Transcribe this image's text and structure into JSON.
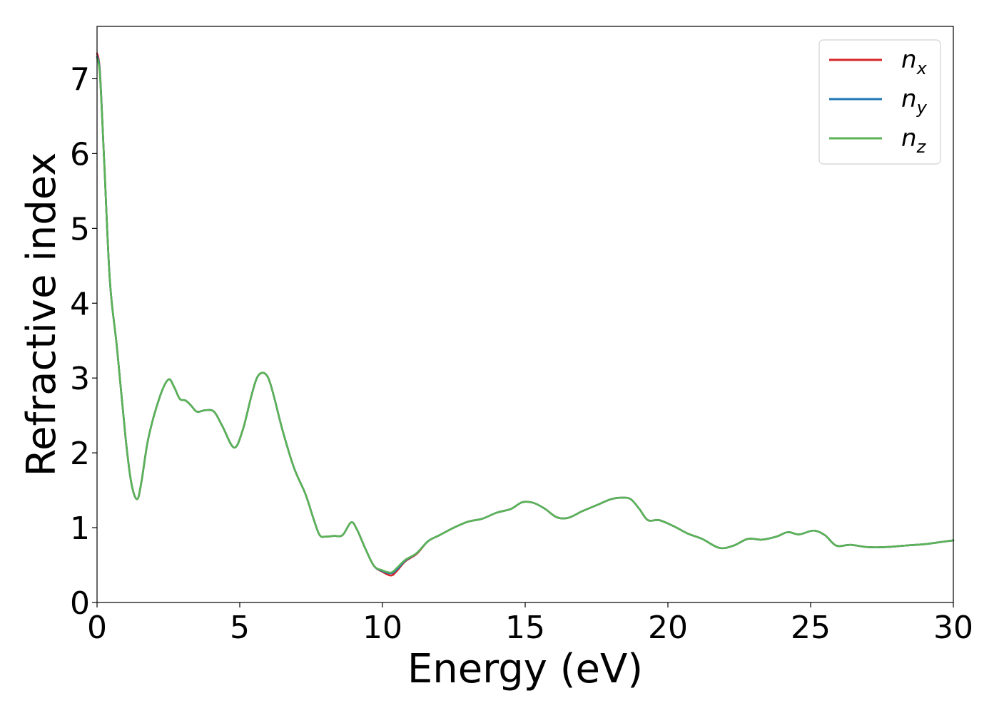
{
  "chart_data": {
    "type": "line",
    "xlabel": "Energy (eV)",
    "ylabel": "Refractive index",
    "xlim": [
      0,
      30
    ],
    "ylim": [
      0,
      7.7
    ],
    "xticks": [
      0,
      5,
      10,
      15,
      20,
      25,
      30
    ],
    "yticks": [
      0,
      1,
      2,
      3,
      4,
      5,
      6,
      7
    ],
    "grid": false,
    "legend_position": "top-right",
    "series": [
      {
        "name": "n",
        "subscript": "x",
        "color": "#d62728",
        "x": [
          0,
          0.1,
          0.25,
          0.45,
          0.7,
          1.0,
          1.2,
          1.4,
          1.55,
          1.8,
          2.2,
          2.5,
          2.7,
          2.9,
          3.1,
          3.3,
          3.5,
          3.8,
          4.1,
          4.4,
          4.8,
          5.1,
          5.4,
          5.6,
          5.8,
          6.0,
          6.2,
          6.5,
          6.9,
          7.3,
          7.6,
          7.8,
          8.0,
          8.3,
          8.6,
          8.9,
          9.1,
          9.4,
          9.7,
          10.0,
          10.3,
          10.5,
          10.8,
          11.2,
          11.6,
          12.0,
          12.5,
          13.0,
          13.5,
          14.0,
          14.5,
          14.9,
          15.3,
          15.7,
          16.1,
          16.5,
          17.0,
          17.5,
          18.0,
          18.4,
          18.7,
          19.0,
          19.3,
          19.7,
          20.2,
          20.7,
          21.2,
          21.8,
          22.3,
          22.8,
          23.3,
          23.8,
          24.2,
          24.6,
          25.1,
          25.5,
          25.9,
          26.4,
          27.0,
          27.6,
          28.3,
          29.0,
          29.6,
          30.0
        ],
        "values": [
          7.34,
          7.1,
          5.9,
          4.3,
          3.4,
          2.2,
          1.6,
          1.38,
          1.6,
          2.2,
          2.75,
          2.98,
          2.88,
          2.72,
          2.7,
          2.63,
          2.55,
          2.57,
          2.55,
          2.35,
          2.07,
          2.3,
          2.75,
          3.0,
          3.07,
          3.0,
          2.75,
          2.3,
          1.8,
          1.45,
          1.1,
          0.9,
          0.88,
          0.89,
          0.9,
          1.07,
          0.98,
          0.72,
          0.49,
          0.41,
          0.36,
          0.42,
          0.55,
          0.65,
          0.82,
          0.9,
          1.0,
          1.08,
          1.12,
          1.2,
          1.25,
          1.34,
          1.33,
          1.25,
          1.14,
          1.13,
          1.22,
          1.3,
          1.38,
          1.4,
          1.38,
          1.25,
          1.1,
          1.1,
          1.02,
          0.92,
          0.85,
          0.73,
          0.76,
          0.85,
          0.84,
          0.88,
          0.94,
          0.91,
          0.96,
          0.9,
          0.76,
          0.77,
          0.74,
          0.74,
          0.76,
          0.78,
          0.81,
          0.83
        ]
      },
      {
        "name": "n",
        "subscript": "y",
        "color": "#1f77b4",
        "x": [
          0,
          0.1,
          0.25,
          0.45,
          0.7,
          1.0,
          1.2,
          1.4,
          1.55,
          1.8,
          2.2,
          2.5,
          2.7,
          2.9,
          3.1,
          3.3,
          3.5,
          3.8,
          4.1,
          4.4,
          4.8,
          5.1,
          5.4,
          5.6,
          5.8,
          6.0,
          6.2,
          6.5,
          6.9,
          7.3,
          7.6,
          7.8,
          8.0,
          8.3,
          8.6,
          8.9,
          9.1,
          9.4,
          9.7,
          10.0,
          10.3,
          10.5,
          10.8,
          11.2,
          11.6,
          12.0,
          12.5,
          13.0,
          13.5,
          14.0,
          14.5,
          14.9,
          15.3,
          15.7,
          16.1,
          16.5,
          17.0,
          17.5,
          18.0,
          18.4,
          18.7,
          19.0,
          19.3,
          19.7,
          20.2,
          20.7,
          21.2,
          21.8,
          22.3,
          22.8,
          23.3,
          23.8,
          24.2,
          24.6,
          25.1,
          25.5,
          25.9,
          26.4,
          27.0,
          27.6,
          28.3,
          29.0,
          29.6,
          30.0
        ],
        "values": [
          7.3,
          7.08,
          5.9,
          4.3,
          3.4,
          2.2,
          1.6,
          1.38,
          1.6,
          2.2,
          2.75,
          2.98,
          2.88,
          2.72,
          2.7,
          2.63,
          2.55,
          2.57,
          2.55,
          2.35,
          2.07,
          2.3,
          2.75,
          3.0,
          3.07,
          3.0,
          2.75,
          2.3,
          1.8,
          1.45,
          1.1,
          0.9,
          0.88,
          0.89,
          0.9,
          1.07,
          0.98,
          0.72,
          0.49,
          0.42,
          0.39,
          0.44,
          0.56,
          0.66,
          0.82,
          0.9,
          1.0,
          1.08,
          1.12,
          1.2,
          1.25,
          1.34,
          1.33,
          1.25,
          1.14,
          1.13,
          1.22,
          1.3,
          1.38,
          1.4,
          1.38,
          1.25,
          1.1,
          1.1,
          1.02,
          0.92,
          0.85,
          0.73,
          0.76,
          0.85,
          0.84,
          0.88,
          0.94,
          0.91,
          0.96,
          0.9,
          0.76,
          0.77,
          0.74,
          0.74,
          0.76,
          0.78,
          0.81,
          0.83
        ]
      },
      {
        "name": "n",
        "subscript": "z",
        "color": "#5ab356",
        "x": [
          0,
          0.1,
          0.25,
          0.45,
          0.7,
          1.0,
          1.2,
          1.4,
          1.55,
          1.8,
          2.2,
          2.5,
          2.7,
          2.9,
          3.1,
          3.3,
          3.5,
          3.8,
          4.1,
          4.4,
          4.8,
          5.1,
          5.4,
          5.6,
          5.8,
          6.0,
          6.2,
          6.5,
          6.9,
          7.3,
          7.6,
          7.8,
          8.0,
          8.3,
          8.6,
          8.9,
          9.1,
          9.4,
          9.7,
          10.0,
          10.3,
          10.5,
          10.8,
          11.2,
          11.6,
          12.0,
          12.5,
          13.0,
          13.5,
          14.0,
          14.5,
          14.9,
          15.3,
          15.7,
          16.1,
          16.5,
          17.0,
          17.5,
          18.0,
          18.4,
          18.7,
          19.0,
          19.3,
          19.7,
          20.2,
          20.7,
          21.2,
          21.8,
          22.3,
          22.8,
          23.3,
          23.8,
          24.2,
          24.6,
          25.1,
          25.5,
          25.9,
          26.4,
          27.0,
          27.6,
          28.3,
          29.0,
          29.6,
          30.0
        ],
        "values": [
          7.28,
          7.05,
          5.9,
          4.3,
          3.4,
          2.2,
          1.6,
          1.38,
          1.6,
          2.2,
          2.75,
          2.98,
          2.88,
          2.72,
          2.7,
          2.63,
          2.55,
          2.57,
          2.55,
          2.35,
          2.07,
          2.3,
          2.75,
          3.0,
          3.07,
          3.0,
          2.75,
          2.3,
          1.8,
          1.45,
          1.1,
          0.9,
          0.88,
          0.89,
          0.9,
          1.07,
          0.98,
          0.72,
          0.49,
          0.43,
          0.4,
          0.46,
          0.57,
          0.66,
          0.82,
          0.9,
          1.0,
          1.08,
          1.12,
          1.2,
          1.25,
          1.34,
          1.33,
          1.25,
          1.14,
          1.13,
          1.22,
          1.3,
          1.38,
          1.4,
          1.38,
          1.25,
          1.1,
          1.1,
          1.02,
          0.92,
          0.85,
          0.73,
          0.76,
          0.85,
          0.84,
          0.88,
          0.94,
          0.91,
          0.96,
          0.9,
          0.76,
          0.77,
          0.74,
          0.74,
          0.76,
          0.78,
          0.81,
          0.83
        ]
      }
    ]
  }
}
